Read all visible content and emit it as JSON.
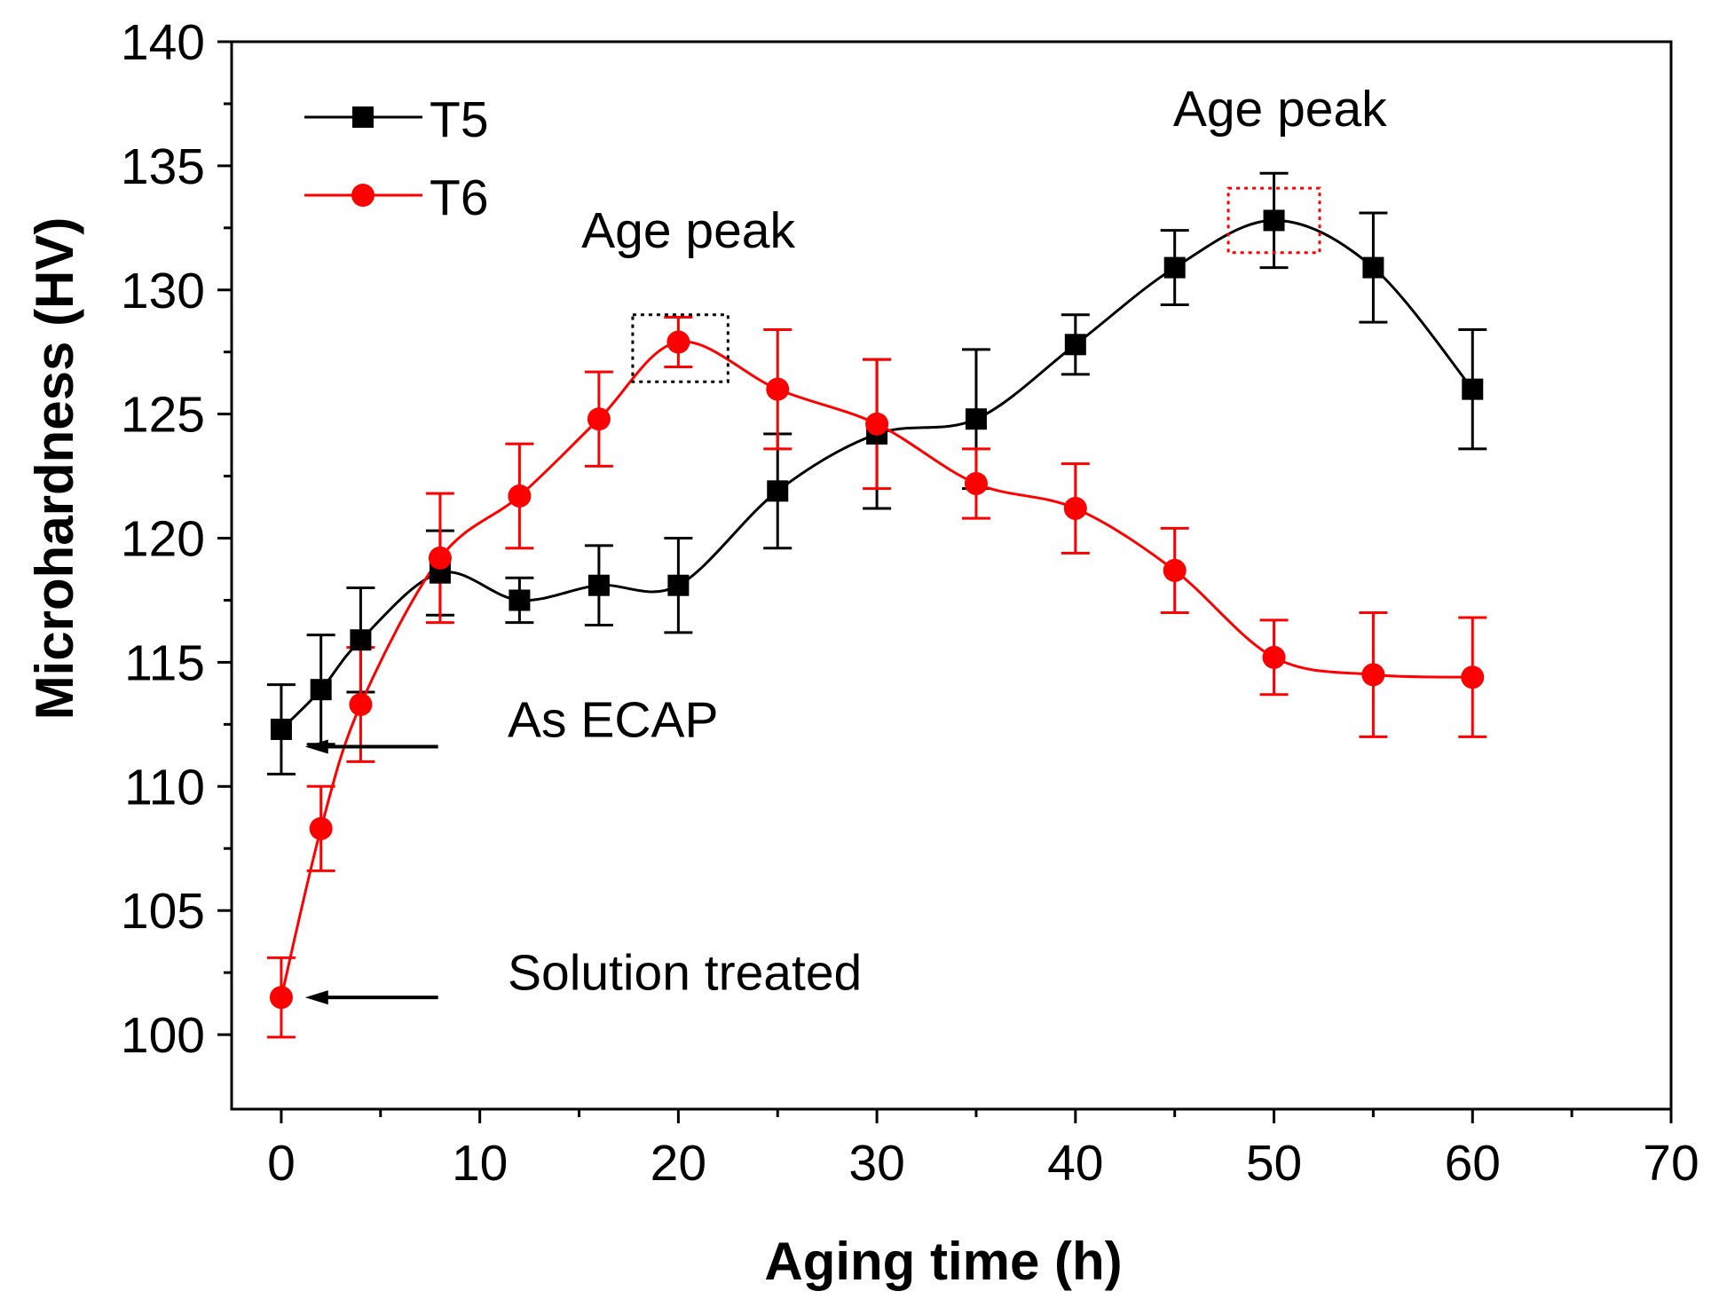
{
  "chart_data": {
    "type": "line",
    "title": "",
    "xlabel": "Aging time (h)",
    "ylabel": "Microhardness (HV)",
    "xlim": [
      -2.5,
      70
    ],
    "ylim": [
      97,
      140
    ],
    "xticks": [
      0,
      10,
      20,
      30,
      40,
      50,
      60,
      70
    ],
    "yticks": [
      100,
      105,
      110,
      115,
      120,
      125,
      130,
      135,
      140
    ],
    "grid": false,
    "legend_position": "top-left",
    "series": [
      {
        "name": "T5",
        "color": "#000000",
        "marker": "square",
        "x": [
          0,
          2,
          4,
          8,
          12,
          16,
          20,
          25,
          30,
          35,
          40,
          45,
          50,
          55,
          60
        ],
        "y": [
          112.3,
          113.9,
          115.9,
          118.6,
          117.5,
          118.1,
          118.1,
          121.9,
          124.2,
          124.8,
          127.8,
          130.9,
          132.8,
          130.9,
          126.0
        ],
        "err": [
          1.8,
          2.2,
          2.1,
          1.7,
          0.9,
          1.6,
          1.9,
          2.3,
          3.0,
          2.8,
          1.2,
          1.5,
          1.9,
          2.2,
          2.4
        ]
      },
      {
        "name": "T6",
        "color": "#ff0000",
        "marker": "circle",
        "x": [
          0,
          2,
          4,
          8,
          12,
          16,
          20,
          25,
          30,
          35,
          40,
          45,
          50,
          55,
          60
        ],
        "y": [
          101.5,
          108.3,
          113.3,
          119.2,
          121.7,
          124.8,
          127.9,
          126.0,
          124.6,
          122.2,
          121.2,
          118.7,
          115.2,
          114.5,
          114.4
        ],
        "err": [
          1.6,
          1.7,
          2.3,
          2.6,
          2.1,
          1.9,
          1.0,
          2.4,
          2.6,
          1.4,
          1.8,
          1.7,
          1.5,
          2.5,
          2.4
        ]
      }
    ],
    "annotations": [
      {
        "text": "Age peak",
        "x": 20.5,
        "y": 131.7
      },
      {
        "text": "Age peak",
        "x": 50.3,
        "y": 136.6
      },
      {
        "text": "As ECAP",
        "x": 11.4,
        "y": 112.0
      },
      {
        "text": "Solution treated",
        "x": 11.4,
        "y": 101.8
      }
    ],
    "arrows": [
      {
        "from": [
          7.9,
          111.6
        ],
        "to": [
          1.2,
          111.6
        ]
      },
      {
        "from": [
          7.9,
          101.5
        ],
        "to": [
          1.2,
          101.5
        ]
      }
    ],
    "highlight_boxes": [
      {
        "color": "#000000",
        "x0": 17.7,
        "x1": 22.5,
        "y0": 126.3,
        "y1": 129.0
      },
      {
        "color": "#ff0000",
        "x0": 47.7,
        "x1": 52.3,
        "y0": 131.5,
        "y1": 134.1
      }
    ]
  }
}
